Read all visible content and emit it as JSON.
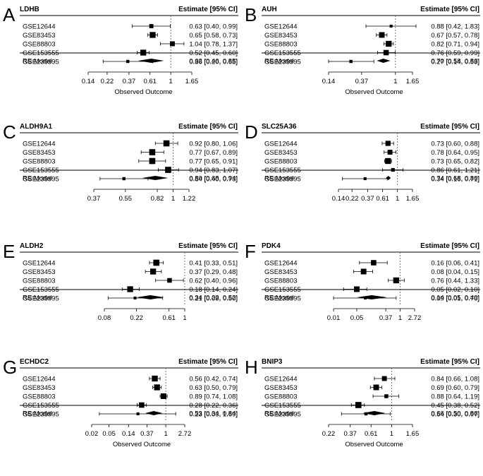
{
  "header": {
    "estimate_label": "Estimate [95% CI]",
    "xlabel": "Observed Outcome"
  },
  "colors": {
    "ink": "#000000",
    "refline": "#555555"
  },
  "chart_data": [
    {
      "type": "forest",
      "panel_letter": "A",
      "title": "LDHB",
      "xscale": "log",
      "ticks": [
        "0.14",
        "0.22",
        "0.37",
        "0.61",
        "1",
        "1.65"
      ],
      "rows": [
        {
          "label": "GSE12644",
          "est": 0.63,
          "lo": 0.4,
          "hi": 0.99,
          "text": "0.63 [0.40, 0.99]",
          "weight": 0.55
        },
        {
          "label": "GSE83453",
          "est": 0.65,
          "lo": 0.58,
          "hi": 0.73,
          "text": "0.65 [0.58, 0.73]",
          "weight": 0.9
        },
        {
          "label": "GSE88803",
          "est": 1.04,
          "lo": 0.78,
          "hi": 1.37,
          "text": "1.04 [0.78, 1.37]",
          "weight": 0.7
        },
        {
          "label": "GSE153555",
          "est": 0.52,
          "lo": 0.45,
          "hi": 0.6,
          "text": "0.52 [0.45, 0.60]",
          "weight": 0.9
        },
        {
          "label": "GSE235995",
          "est": 0.36,
          "lo": 0.2,
          "hi": 0.65,
          "text": "0.36 [0.20, 0.65]",
          "weight": 0.35
        }
      ],
      "summary": {
        "label": "RE Model",
        "est": 0.63,
        "lo": 0.46,
        "hi": 0.85,
        "text": "0.63 [0.46, 0.85]"
      },
      "show_xlabel": true
    },
    {
      "type": "forest",
      "panel_letter": "B",
      "title": "AUH",
      "xscale": "log",
      "ticks": [
        "0.14",
        "0.37",
        "1",
        "1.65"
      ],
      "rows": [
        {
          "label": "GSE12644",
          "est": 0.88,
          "lo": 0.42,
          "hi": 1.83,
          "text": "0.88 [0.42, 1.83]",
          "weight": 0.3
        },
        {
          "label": "GSE83453",
          "est": 0.67,
          "lo": 0.57,
          "hi": 0.78,
          "text": "0.67 [0.57, 0.78]",
          "weight": 0.85
        },
        {
          "label": "GSE88803",
          "est": 0.82,
          "lo": 0.71,
          "hi": 0.94,
          "text": "0.82 [0.71, 0.94]",
          "weight": 0.9
        },
        {
          "label": "GSE153555",
          "est": 0.76,
          "lo": 0.59,
          "hi": 0.99,
          "text": "0.76 [0.59, 0.99]",
          "weight": 0.8
        },
        {
          "label": "GSE235995",
          "est": 0.27,
          "lo": 0.14,
          "hi": 0.53,
          "text": "0.27 [0.14, 0.53]",
          "weight": 0.35
        }
      ],
      "summary": {
        "label": "RE Model",
        "est": 0.7,
        "lo": 0.58,
        "hi": 0.86,
        "text": "0.70 [0.58, 0.86]"
      },
      "show_xlabel": true
    },
    {
      "type": "forest",
      "panel_letter": "C",
      "title": "ALDH9A1",
      "xscale": "log",
      "ticks": [
        "0.37",
        "0.55",
        "0.82",
        "1",
        "1.22"
      ],
      "rows": [
        {
          "label": "GSE12644",
          "est": 0.92,
          "lo": 0.8,
          "hi": 1.06,
          "text": "0.92 [0.80, 1.06]",
          "weight": 0.95
        },
        {
          "label": "GSE83453",
          "est": 0.77,
          "lo": 0.67,
          "hi": 0.89,
          "text": "0.77 [0.67, 0.89]",
          "weight": 0.95
        },
        {
          "label": "GSE88803",
          "est": 0.77,
          "lo": 0.65,
          "hi": 0.91,
          "text": "0.77 [0.65, 0.91]",
          "weight": 0.95
        },
        {
          "label": "GSE153555",
          "est": 0.94,
          "lo": 0.83,
          "hi": 1.07,
          "text": "0.94 [0.83, 1.07]",
          "weight": 0.95
        },
        {
          "label": "GSE235995",
          "est": 0.54,
          "lo": 0.4,
          "hi": 0.73,
          "text": "0.54 [0.40, 0.73]",
          "weight": 0.35
        }
      ],
      "summary": {
        "label": "RE Model",
        "est": 0.8,
        "lo": 0.68,
        "hi": 0.94,
        "text": "0.80 [0.68, 0.94]"
      },
      "show_xlabel": false
    },
    {
      "type": "forest",
      "panel_letter": "D",
      "title": "SLC25A36",
      "xscale": "log",
      "ticks": [
        "0.14",
        "0.22",
        "0.37",
        "0.61",
        "1",
        "1.65"
      ],
      "rows": [
        {
          "label": "GSE12644",
          "est": 0.73,
          "lo": 0.6,
          "hi": 0.88,
          "text": "0.73 [0.60, 0.88]",
          "weight": 0.75
        },
        {
          "label": "GSE83453",
          "est": 0.78,
          "lo": 0.64,
          "hi": 0.95,
          "text": "0.78 [0.64, 0.95]",
          "weight": 0.7
        },
        {
          "label": "GSE88803",
          "est": 0.73,
          "lo": 0.65,
          "hi": 0.82,
          "text": "0.73 [0.65, 0.82]",
          "weight": 0.9
        },
        {
          "label": "GSE153555",
          "est": 0.86,
          "lo": 0.61,
          "hi": 1.21,
          "text": "0.86 [0.61, 1.21]",
          "weight": 0.45
        },
        {
          "label": "GSE235995",
          "est": 0.34,
          "lo": 0.16,
          "hi": 0.71,
          "text": "0.34 [0.16, 0.71]",
          "weight": 0.3
        }
      ],
      "summary": {
        "label": "RE Model",
        "est": 0.74,
        "lo": 0.68,
        "hi": 0.8,
        "text": "0.74 [0.68, 0.80]"
      },
      "show_xlabel": false
    },
    {
      "type": "forest",
      "panel_letter": "E",
      "title": "ALDH2",
      "xscale": "log",
      "ticks": [
        "0.08",
        "0.22",
        "0.61",
        "1"
      ],
      "rows": [
        {
          "label": "GSE12644",
          "est": 0.41,
          "lo": 0.33,
          "hi": 0.51,
          "text": "0.41 [0.33, 0.51]",
          "weight": 0.95
        },
        {
          "label": "GSE83453",
          "est": 0.37,
          "lo": 0.29,
          "hi": 0.48,
          "text": "0.37 [0.29, 0.48]",
          "weight": 0.9
        },
        {
          "label": "GSE88803",
          "est": 0.62,
          "lo": 0.4,
          "hi": 0.96,
          "text": "0.62 [0.40, 0.96]",
          "weight": 0.65
        },
        {
          "label": "GSE153555",
          "est": 0.18,
          "lo": 0.14,
          "hi": 0.24,
          "text": "0.18 [0.14, 0.24]",
          "weight": 0.9
        },
        {
          "label": "GSE235995",
          "est": 0.21,
          "lo": 0.09,
          "hi": 0.5,
          "text": "0.21 [0.09, 0.50]",
          "weight": 0.3
        }
      ],
      "summary": {
        "label": "RE Model",
        "est": 0.34,
        "lo": 0.22,
        "hi": 0.52,
        "text": "0.34 [0.22, 0.52]"
      },
      "show_xlabel": false
    },
    {
      "type": "forest",
      "panel_letter": "F",
      "title": "PDK4",
      "xscale": "log",
      "ticks": [
        "0.01",
        "0.05",
        "0.37",
        "1",
        "2.72"
      ],
      "rows": [
        {
          "label": "GSE12644",
          "est": 0.16,
          "lo": 0.06,
          "hi": 0.41,
          "text": "0.16 [0.06, 0.41]",
          "weight": 0.8
        },
        {
          "label": "GSE83453",
          "est": 0.08,
          "lo": 0.04,
          "hi": 0.15,
          "text": "0.08 [0.04, 0.15]",
          "weight": 0.85
        },
        {
          "label": "GSE88803",
          "est": 0.76,
          "lo": 0.44,
          "hi": 1.33,
          "text": "0.76 [0.44, 1.33]",
          "weight": 0.9
        },
        {
          "label": "GSE153555",
          "est": 0.05,
          "lo": 0.02,
          "hi": 0.1,
          "text": "0.05 [0.02, 0.10]",
          "weight": 0.85
        },
        {
          "label": "GSE235995",
          "est": 0.09,
          "lo": 0.01,
          "hi": 0.76,
          "text": "0.09 [0.01, 0.76]",
          "weight": 0.3
        }
      ],
      "summary": {
        "label": "RE Model",
        "est": 0.14,
        "lo": 0.05,
        "hi": 0.4,
        "text": "0.14 [0.05, 0.40]"
      },
      "show_xlabel": false
    },
    {
      "type": "forest",
      "panel_letter": "G",
      "title": "ECHDC2",
      "xscale": "log",
      "ticks": [
        "0.02",
        "0.05",
        "0.14",
        "0.37",
        "1",
        "2.72"
      ],
      "rows": [
        {
          "label": "GSE12644",
          "est": 0.56,
          "lo": 0.42,
          "hi": 0.74,
          "text": "0.56 [0.42, 0.74]",
          "weight": 0.9
        },
        {
          "label": "GSE83453",
          "est": 0.63,
          "lo": 0.5,
          "hi": 0.79,
          "text": "0.63 [0.50, 0.79]",
          "weight": 0.9
        },
        {
          "label": "GSE88803",
          "est": 0.89,
          "lo": 0.74,
          "hi": 1.08,
          "text": "0.89 [0.74, 1.08]",
          "weight": 0.85
        },
        {
          "label": "GSE153555",
          "est": 0.28,
          "lo": 0.22,
          "hi": 0.36,
          "text": "0.28 [0.22, 0.36]",
          "weight": 0.8
        },
        {
          "label": "GSE235995",
          "est": 0.23,
          "lo": 0.03,
          "hi": 1.69,
          "text": "0.23 [0.03, 1.69]",
          "weight": 0.3
        }
      ],
      "summary": {
        "label": "RE Model",
        "est": 0.53,
        "lo": 0.34,
        "hi": 0.84,
        "text": "0.53 [0.34, 0.84]"
      },
      "show_xlabel": true
    },
    {
      "type": "forest",
      "panel_letter": "H",
      "title": "BNIP3",
      "xscale": "log",
      "ticks": [
        "0.22",
        "0.37",
        "0.61",
        "1",
        "1.65"
      ],
      "rows": [
        {
          "label": "GSE12644",
          "est": 0.84,
          "lo": 0.66,
          "hi": 1.08,
          "text": "0.84 [0.66, 1.08]",
          "weight": 0.7
        },
        {
          "label": "GSE83453",
          "est": 0.69,
          "lo": 0.6,
          "hi": 0.79,
          "text": "0.69 [0.60, 0.79]",
          "weight": 0.85
        },
        {
          "label": "GSE88803",
          "est": 0.88,
          "lo": 0.64,
          "hi": 1.19,
          "text": "0.88 [0.64, 1.19]",
          "weight": 0.5
        },
        {
          "label": "GSE153555",
          "est": 0.45,
          "lo": 0.38,
          "hi": 0.52,
          "text": "0.45 [0.38, 0.52]",
          "weight": 0.95
        },
        {
          "label": "GSE235995",
          "est": 0.54,
          "lo": 0.3,
          "hi": 0.97,
          "text": "0.54 [0.30, 0.97]",
          "weight": 0.35
        }
      ],
      "summary": {
        "label": "RE Model",
        "est": 0.66,
        "lo": 0.5,
        "hi": 0.86,
        "text": "0.66 [0.50, 0.86]"
      },
      "show_xlabel": true
    }
  ]
}
